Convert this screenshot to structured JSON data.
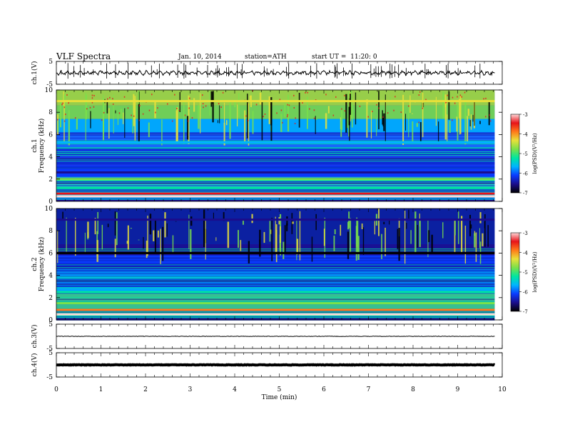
{
  "header": {
    "title": "VLF Spectra",
    "date": "Jan. 10, 2014",
    "station": "station=ATH",
    "start": "start UT =  11:20: 0"
  },
  "colors": {
    "colorbar_stops": [
      "#000000",
      "#1b0d8c",
      "#0a3cff",
      "#00b4ff",
      "#00e6a0",
      "#7ae04a",
      "#e8e03a",
      "#ff7a1a",
      "#e8131a",
      "#ffd8d8"
    ],
    "background_blue": "#0b2bd9",
    "band_red": "#d9201a"
  },
  "chart_data": [
    {
      "type": "line",
      "id": "ch1-waveform",
      "ylabel": "ch.1(V)",
      "y_ticks": [
        "5",
        "-5"
      ],
      "ylim": [
        -5,
        5
      ],
      "xlim": [
        0,
        10
      ],
      "x_end": 9.83,
      "description_level": 0.0
    },
    {
      "type": "heatmap",
      "id": "ch1-spectrogram",
      "ylabel_top": "ch.1",
      "ylabel": "Frequency  (kHz)",
      "y_ticks": [
        "0",
        "2",
        "4",
        "6",
        "8",
        "10"
      ],
      "ylim": [
        0,
        10
      ],
      "xlim": [
        0,
        10
      ],
      "x_end": 9.83,
      "colorbar": {
        "label": "log(PSD)(V²/Hz)",
        "ticks": [
          "-3",
          "-4",
          "-5",
          "-6",
          "-7"
        ],
        "range": [
          -7,
          -3
        ]
      },
      "bands": [
        {
          "freq": 0.45,
          "level": -3.1
        },
        {
          "freq": 0.7,
          "level": -3.6
        },
        {
          "freq": 1.2,
          "level": -5.3
        },
        {
          "freq": 2.0,
          "level": -5.0
        },
        {
          "freq": 2.6,
          "level": -6.6
        },
        {
          "freq": 5.3,
          "level": -5.8
        },
        {
          "freq": 9.0,
          "level": -4.5
        }
      ]
    },
    {
      "type": "heatmap",
      "id": "ch2-spectrogram",
      "ylabel_top": "ch.2",
      "ylabel": "Frequency  (kHz)",
      "y_ticks": [
        "0",
        "2",
        "4",
        "6",
        "8",
        "10"
      ],
      "ylim": [
        0,
        10
      ],
      "xlim": [
        0,
        10
      ],
      "x_end": 9.83,
      "colorbar": {
        "label": "log(PSD)(V²/Hz)",
        "ticks": [
          "-3",
          "-4",
          "-5",
          "-6",
          "-7"
        ],
        "range": [
          -7,
          -3
        ]
      },
      "bands": [
        {
          "freq": 0.5,
          "level": -3.2
        },
        {
          "freq": 0.9,
          "level": -3.8
        },
        {
          "freq": 1.5,
          "level": -4.6
        },
        {
          "freq": 2.5,
          "level": -5.1
        },
        {
          "freq": 6.0,
          "level": -6.9
        },
        {
          "freq": 9.0,
          "level": -6.5
        }
      ]
    },
    {
      "type": "line",
      "id": "ch3-waveform",
      "ylabel": "ch.3(V)",
      "y_ticks": [
        "5",
        "-5"
      ],
      "ylim": [
        -5,
        5
      ],
      "xlim": [
        0,
        10
      ],
      "x_end": 9.83,
      "description_level": 0.0
    },
    {
      "type": "line",
      "id": "ch4-waveform",
      "ylabel": "ch.4(V)",
      "y_ticks": [
        "5",
        "-5"
      ],
      "ylim": [
        -5,
        5
      ],
      "xlim": [
        0,
        10
      ],
      "x_end": 9.83,
      "description_level": 0.0
    }
  ],
  "xaxis": {
    "label": "Time  (min)",
    "ticks": [
      "0",
      "1",
      "2",
      "3",
      "4",
      "5",
      "6",
      "7",
      "8",
      "9",
      "10"
    ],
    "xlim": [
      0,
      10
    ]
  }
}
